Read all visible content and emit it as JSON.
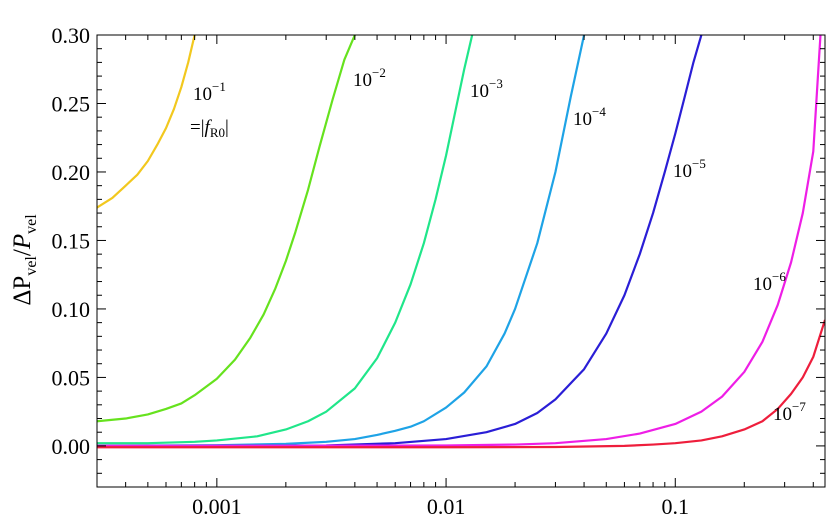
{
  "chart_data": {
    "type": "line",
    "title": "",
    "xlabel": "",
    "ylabel": "ΔP_vel/P_vel",
    "ylabel_parts": {
      "delta": "Δ",
      "P1": "P",
      "sub1": "vel",
      "slash": "/",
      "P2": "P",
      "sub2": "vel"
    },
    "x_scale": "log",
    "xlim": [
      0.0003,
      0.45
    ],
    "ylim": [
      -0.03,
      0.3
    ],
    "x_ticks": [
      {
        "value": 0.001,
        "label": "0.001"
      },
      {
        "value": 0.01,
        "label": "0.01"
      },
      {
        "value": 0.1,
        "label": "0.1"
      }
    ],
    "y_ticks": [
      {
        "value": 0.0,
        "label": "0.00"
      },
      {
        "value": 0.05,
        "label": "0.05"
      },
      {
        "value": 0.1,
        "label": "0.10"
      },
      {
        "value": 0.15,
        "label": "0.15"
      },
      {
        "value": 0.2,
        "label": "0.20"
      },
      {
        "value": 0.25,
        "label": "0.25"
      },
      {
        "value": 0.3,
        "label": "0.30"
      }
    ],
    "grid": false,
    "series": [
      {
        "color": "#f2c81e",
        "label_base": "10",
        "label_exp": "−1",
        "label_line2": "=|f_R0|",
        "x": [
          0.0003,
          0.00035,
          0.0004,
          0.00045,
          0.0005,
          0.00055,
          0.0006,
          0.00065,
          0.0007,
          0.00075,
          0.0008
        ],
        "y": [
          0.174,
          0.181,
          0.19,
          0.198,
          0.208,
          0.22,
          0.232,
          0.246,
          0.262,
          0.28,
          0.3
        ]
      },
      {
        "color": "#66e21e",
        "label_base": "10",
        "label_exp": "−2",
        "x": [
          0.0003,
          0.0004,
          0.0005,
          0.0006,
          0.0007,
          0.0008,
          0.001,
          0.0012,
          0.0014,
          0.0016,
          0.0018,
          0.002,
          0.0022,
          0.0025,
          0.0028,
          0.0032,
          0.0036,
          0.004
        ],
        "y": [
          0.018,
          0.02,
          0.023,
          0.027,
          0.031,
          0.037,
          0.049,
          0.063,
          0.079,
          0.096,
          0.115,
          0.135,
          0.156,
          0.187,
          0.218,
          0.253,
          0.282,
          0.3
        ]
      },
      {
        "color": "#20e68a",
        "label_base": "10",
        "label_exp": "−3",
        "x": [
          0.0003,
          0.0005,
          0.0008,
          0.001,
          0.0015,
          0.002,
          0.0025,
          0.003,
          0.004,
          0.005,
          0.006,
          0.007,
          0.008,
          0.009,
          0.01,
          0.011,
          0.012,
          0.013
        ],
        "y": [
          0.002,
          0.002,
          0.003,
          0.004,
          0.007,
          0.012,
          0.018,
          0.025,
          0.042,
          0.064,
          0.09,
          0.118,
          0.148,
          0.18,
          0.212,
          0.245,
          0.275,
          0.3
        ]
      },
      {
        "color": "#1ea3e6",
        "label_base": "10",
        "label_exp": "−4",
        "x": [
          0.0003,
          0.001,
          0.002,
          0.003,
          0.004,
          0.005,
          0.006,
          0.007,
          0.008,
          0.01,
          0.012,
          0.015,
          0.018,
          0.02,
          0.025,
          0.03,
          0.035,
          0.04
        ],
        "y": [
          0.0,
          0.0005,
          0.0015,
          0.003,
          0.005,
          0.008,
          0.011,
          0.014,
          0.018,
          0.028,
          0.039,
          0.058,
          0.082,
          0.1,
          0.148,
          0.2,
          0.255,
          0.3
        ]
      },
      {
        "color": "#2a1ed6",
        "label_base": "10",
        "label_exp": "−5",
        "x": [
          0.0003,
          0.003,
          0.006,
          0.01,
          0.015,
          0.02,
          0.025,
          0.03,
          0.04,
          0.05,
          0.06,
          0.07,
          0.08,
          0.09,
          0.1,
          0.11,
          0.12,
          0.13
        ],
        "y": [
          0.0,
          0.0003,
          0.002,
          0.005,
          0.01,
          0.016,
          0.024,
          0.034,
          0.056,
          0.082,
          0.11,
          0.14,
          0.17,
          0.2,
          0.228,
          0.255,
          0.28,
          0.3
        ]
      },
      {
        "color": "#ee1ee6",
        "label_base": "10",
        "label_exp": "−6",
        "x": [
          0.0003,
          0.01,
          0.02,
          0.03,
          0.05,
          0.07,
          0.1,
          0.13,
          0.16,
          0.2,
          0.24,
          0.28,
          0.32,
          0.36,
          0.4,
          0.43
        ],
        "y": [
          0.0,
          0.0003,
          0.001,
          0.002,
          0.005,
          0.009,
          0.016,
          0.025,
          0.036,
          0.054,
          0.076,
          0.103,
          0.134,
          0.17,
          0.215,
          0.3
        ]
      },
      {
        "color": "#ee1e3c",
        "label_base": "10",
        "label_exp": "−7",
        "x": [
          0.0003,
          0.01,
          0.03,
          0.06,
          0.08,
          0.1,
          0.13,
          0.16,
          0.2,
          0.24,
          0.28,
          0.32,
          0.36,
          0.4,
          0.45
        ],
        "y": [
          -0.001,
          -0.001,
          -0.0008,
          0.0,
          0.001,
          0.002,
          0.004,
          0.007,
          0.012,
          0.018,
          0.027,
          0.038,
          0.05,
          0.065,
          0.092
        ]
      }
    ]
  }
}
